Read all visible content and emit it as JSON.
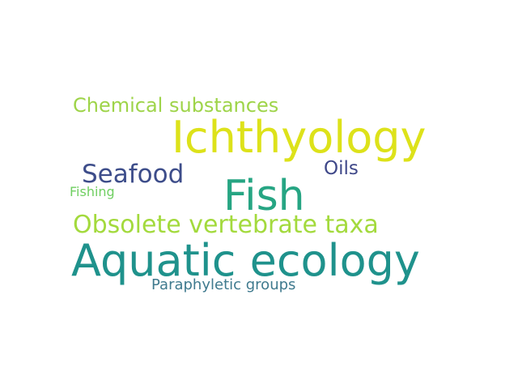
{
  "words": [
    {
      "text": "Chemical substances",
      "color": "#9ed449"
    },
    {
      "text": "Ichthyology",
      "color": "#dde21a"
    },
    {
      "text": "Seafood",
      "color": "#3d4d8a"
    },
    {
      "text": "Oils",
      "color": "#3f4889"
    },
    {
      "text": "Fishing",
      "color": "#6fcf61"
    },
    {
      "text": "Fish",
      "color": "#26a583"
    },
    {
      "text": "Obsolete vertebrate taxa",
      "color": "#a3da3d"
    },
    {
      "text": "Aquatic ecology",
      "color": "#1f928c"
    },
    {
      "text": "Paraphyletic groups",
      "color": "#3f7a8e"
    }
  ]
}
